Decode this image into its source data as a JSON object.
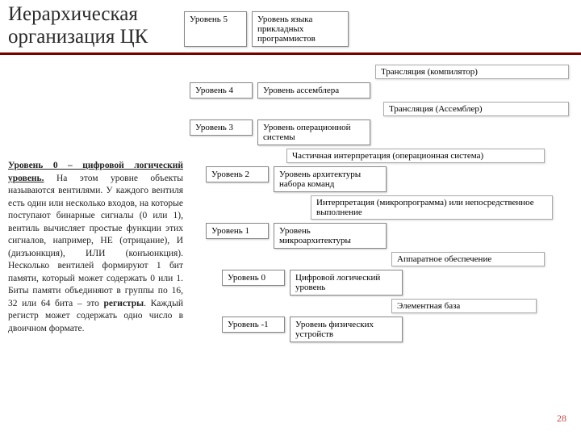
{
  "title": "Иерархическая организация ЦК",
  "top_level": {
    "label": "Уровень 5",
    "desc": "Уровень языка прикладных программистов"
  },
  "transitions": [
    "Трансляция (компилятор)",
    "Трансляция (Ассемблер)",
    "Частичная интерпретация (операционная система)",
    "Интерпретация (микропрограмма) или непосредственное выполнение",
    "Аппаратное обеспечение",
    "Элементная база"
  ],
  "levels": [
    {
      "label": "Уровень 4",
      "desc": "Уровень ассемблера"
    },
    {
      "label": "Уровень 3",
      "desc": "Уровень операционной системы"
    },
    {
      "label": "Уровень 2",
      "desc": "Уровень архитектуры набора команд"
    },
    {
      "label": "Уровень 1",
      "desc": "Уровень микроархитектуры"
    },
    {
      "label": "Уровень 0",
      "desc": "Цифровой логический уровень"
    },
    {
      "label": "Уровень -1",
      "desc": "Уровень физических устройств"
    }
  ],
  "body_text": {
    "heading": "Уровень 0 – цифровой логический уровень.",
    "para": " На этом уровне объекты называются вентилями. У каждого вентиля есть один или несколько входов, на которые поступают бинарные сигналы (0 или 1), вентиль вычисляет простые функции этих сигналов, например, НЕ (отрицание), И (дизъюнкция), ИЛИ (конъюнкция). Несколько вентилей формируют 1 бит памяти, который может содержать 0 или 1. Биты памяти объединяют в группы по 16, 32 или 64 бита – это ",
    "bold": "регистры",
    "tail": ". Каждый регистр может содержать одно число в двоичном формате."
  },
  "page_number": "28",
  "colors": {
    "title_underline": "#7a0000",
    "box_border": "#888888",
    "text": "#222222",
    "pagenum": "#c44848"
  }
}
